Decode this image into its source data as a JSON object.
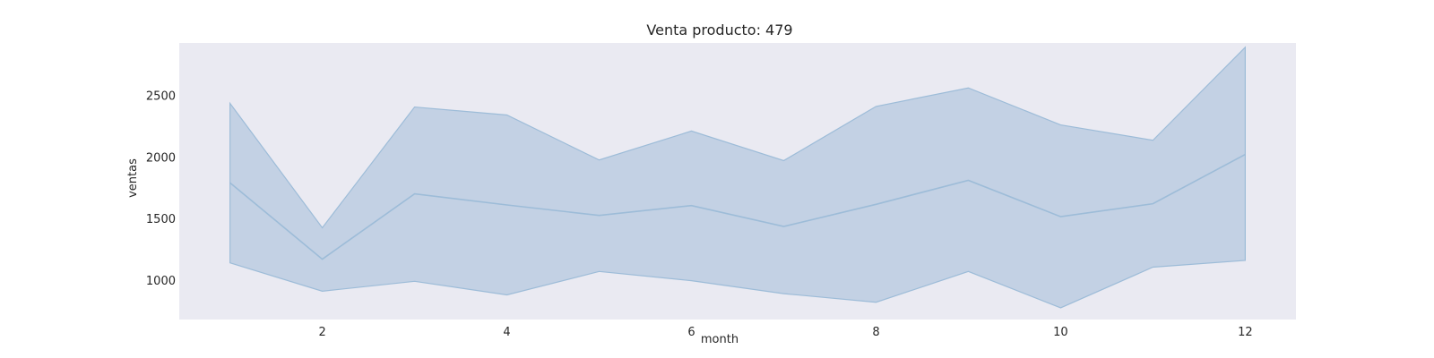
{
  "chart_data": {
    "type": "area",
    "title": "Venta producto: 479",
    "xlabel": "month",
    "ylabel": "ventas",
    "xlim": [
      0.45,
      12.55
    ],
    "ylim": [
      680,
      2925
    ],
    "x_ticks": [
      2,
      4,
      6,
      8,
      10,
      12
    ],
    "y_ticks": [
      1000,
      1500,
      2000,
      2500
    ],
    "grid": false,
    "legend": "none",
    "x": [
      1,
      2,
      3,
      4,
      5,
      6,
      7,
      8,
      9,
      10,
      11,
      12
    ],
    "series": [
      {
        "values": [
          1790,
          1170,
          1700,
          1610,
          1525,
          1605,
          1435,
          1615,
          1810,
          1515,
          1620,
          2020
        ],
        "lower": [
          1140,
          910,
          990,
          880,
          1070,
          995,
          890,
          820,
          1070,
          775,
          1105,
          1160
        ],
        "upper": [
          2435,
          1425,
          2405,
          2340,
          1975,
          2210,
          1970,
          2410,
          2560,
          2260,
          2135,
          2890
        ]
      }
    ],
    "colors": {
      "plot_background": "#eaeaf2",
      "band_fill": "#a8c0da",
      "line": "#9dbcd8"
    }
  }
}
